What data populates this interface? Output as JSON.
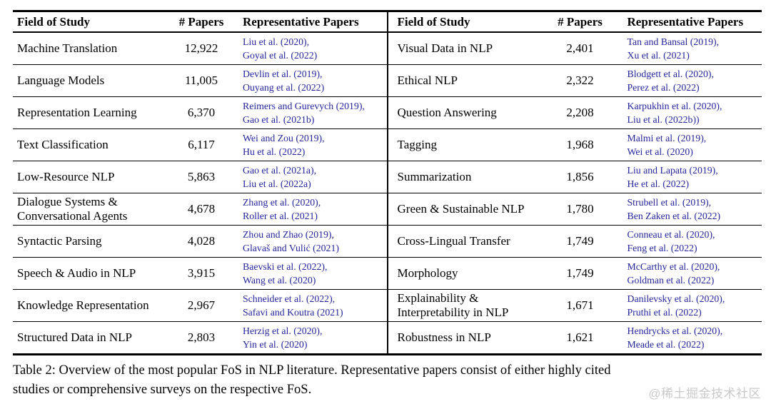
{
  "table": {
    "columns": {
      "field": "Field of Study",
      "papers": "# Papers",
      "reps": "Representative Papers"
    },
    "left_rows": [
      {
        "field": "Machine Translation",
        "papers": "12,922",
        "refs": [
          "Liu et al. (2020),",
          "Goyal et al. (2022)"
        ]
      },
      {
        "field": "Language Models",
        "papers": "11,005",
        "refs": [
          "Devlin et al. (2019),",
          "Ouyang et al. (2022)"
        ]
      },
      {
        "field": "Representation Learning",
        "papers": "6,370",
        "refs": [
          "Reimers and Gurevych (2019),",
          "Gao et al. (2021b)"
        ]
      },
      {
        "field": "Text Classification",
        "papers": "6,117",
        "refs": [
          "Wei and Zou (2019),",
          "Hu et al. (2022)"
        ]
      },
      {
        "field": "Low-Resource NLP",
        "papers": "5,863",
        "refs": [
          "Gao et al. (2021a),",
          "Liu et al. (2022a)"
        ]
      },
      {
        "field": "Dialogue Systems & Conversational Agents",
        "papers": "4,678",
        "refs": [
          "Zhang et al. (2020),",
          "Roller et al. (2021)"
        ]
      },
      {
        "field": "Syntactic Parsing",
        "papers": "4,028",
        "refs": [
          "Zhou and Zhao (2019),",
          "Glavaš and Vulić (2021)"
        ]
      },
      {
        "field": "Speech & Audio in NLP",
        "papers": "3,915",
        "refs": [
          "Baevski et al. (2022),",
          "Wang et al. (2020)"
        ]
      },
      {
        "field": "Knowledge Representation",
        "papers": "2,967",
        "refs": [
          "Schneider et al. (2022),",
          "Safavi and Koutra (2021)"
        ]
      },
      {
        "field": "Structured Data in NLP",
        "papers": "2,803",
        "refs": [
          "Herzig et al. (2020),",
          "Yin et al. (2020)"
        ]
      }
    ],
    "right_rows": [
      {
        "field": "Visual Data in NLP",
        "papers": "2,401",
        "refs": [
          "Tan and Bansal (2019),",
          "Xu et al. (2021)"
        ]
      },
      {
        "field": "Ethical NLP",
        "papers": "2,322",
        "refs": [
          "Blodgett et al. (2020),",
          "Perez et al. (2022)"
        ]
      },
      {
        "field": "Question Answering",
        "papers": "2,208",
        "refs": [
          "Karpukhin et al. (2020),",
          "Liu et al. (2022b))"
        ]
      },
      {
        "field": "Tagging",
        "papers": "1,968",
        "refs": [
          "Malmi et al. (2019),",
          "Wei et al. (2020)"
        ]
      },
      {
        "field": "Summarization",
        "papers": "1,856",
        "refs": [
          "Liu and Lapata (2019),",
          "He et al. (2022)"
        ]
      },
      {
        "field": "Green & Sustainable NLP",
        "papers": "1,780",
        "refs": [
          "Strubell et al. (2019),",
          "Ben Zaken et al. (2022)"
        ]
      },
      {
        "field": "Cross-Lingual Transfer",
        "papers": "1,749",
        "refs": [
          "Conneau et al. (2020),",
          "Feng et al. (2022)"
        ]
      },
      {
        "field": "Morphology",
        "papers": "1,749",
        "refs": [
          "McCarthy et al. (2020),",
          "Goldman et al. (2022)"
        ]
      },
      {
        "field": "Explainability & Interpretability in NLP",
        "papers": "1,671",
        "refs": [
          "Danilevsky et al. (2020),",
          "Pruthi et al. (2022)"
        ]
      },
      {
        "field": "Robustness in NLP",
        "papers": "1,621",
        "refs": [
          "Hendrycks et al. (2020),",
          "Meade et al. (2022)"
        ]
      }
    ]
  },
  "caption": {
    "line1": "Table 2: Overview of the most popular FoS in NLP literature. Representative papers consist of either highly cited",
    "line2": "studies or comprehensive surveys on the respective FoS."
  },
  "watermark": "@稀土掘金技术社区",
  "colors": {
    "citation_link": "#26269c",
    "text": "#000000",
    "watermark": "#c9c9c9"
  }
}
